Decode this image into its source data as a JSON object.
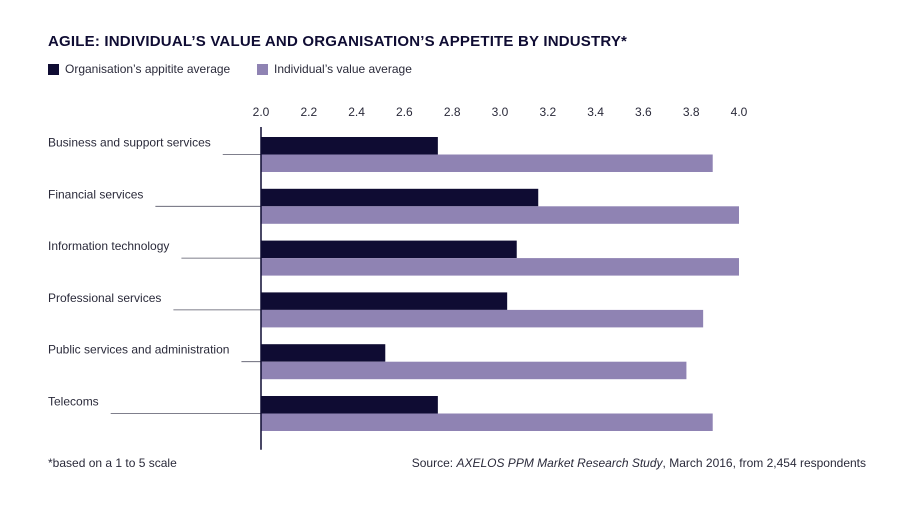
{
  "chart_data": {
    "type": "bar",
    "orientation": "horizontal",
    "title": "AGILE: INDIVIDUAL’S VALUE AND ORGANISATION’S APPETITE BY INDUSTRY*",
    "categories": [
      "Business and support services",
      "Financial services",
      "Information technology",
      "Professional services",
      "Public services and administration",
      "Telecoms"
    ],
    "series": [
      {
        "name": "Organisation’s appitite average",
        "color": "#0f0c33",
        "values": [
          2.74,
          3.16,
          3.07,
          3.03,
          2.52,
          2.74
        ]
      },
      {
        "name": "Individual’s value average",
        "color": "#8f83b3",
        "values": [
          3.89,
          4.0,
          4.0,
          3.85,
          3.78,
          3.89
        ]
      }
    ],
    "xlim": [
      2.0,
      4.0
    ],
    "xticks": [
      "2.0",
      "2.2",
      "2.4",
      "2.6",
      "2.8",
      "3.0",
      "3.2",
      "3.4",
      "3.6",
      "3.8",
      "4.0"
    ],
    "legend_position": "top-left",
    "grid": false
  },
  "footnote": "*based on a 1 to 5 scale",
  "source": {
    "prefix": "Source: ",
    "study": "AXELOS PPM Market Research Study",
    "suffix": ", March 2016, from 2,454 respondents"
  }
}
